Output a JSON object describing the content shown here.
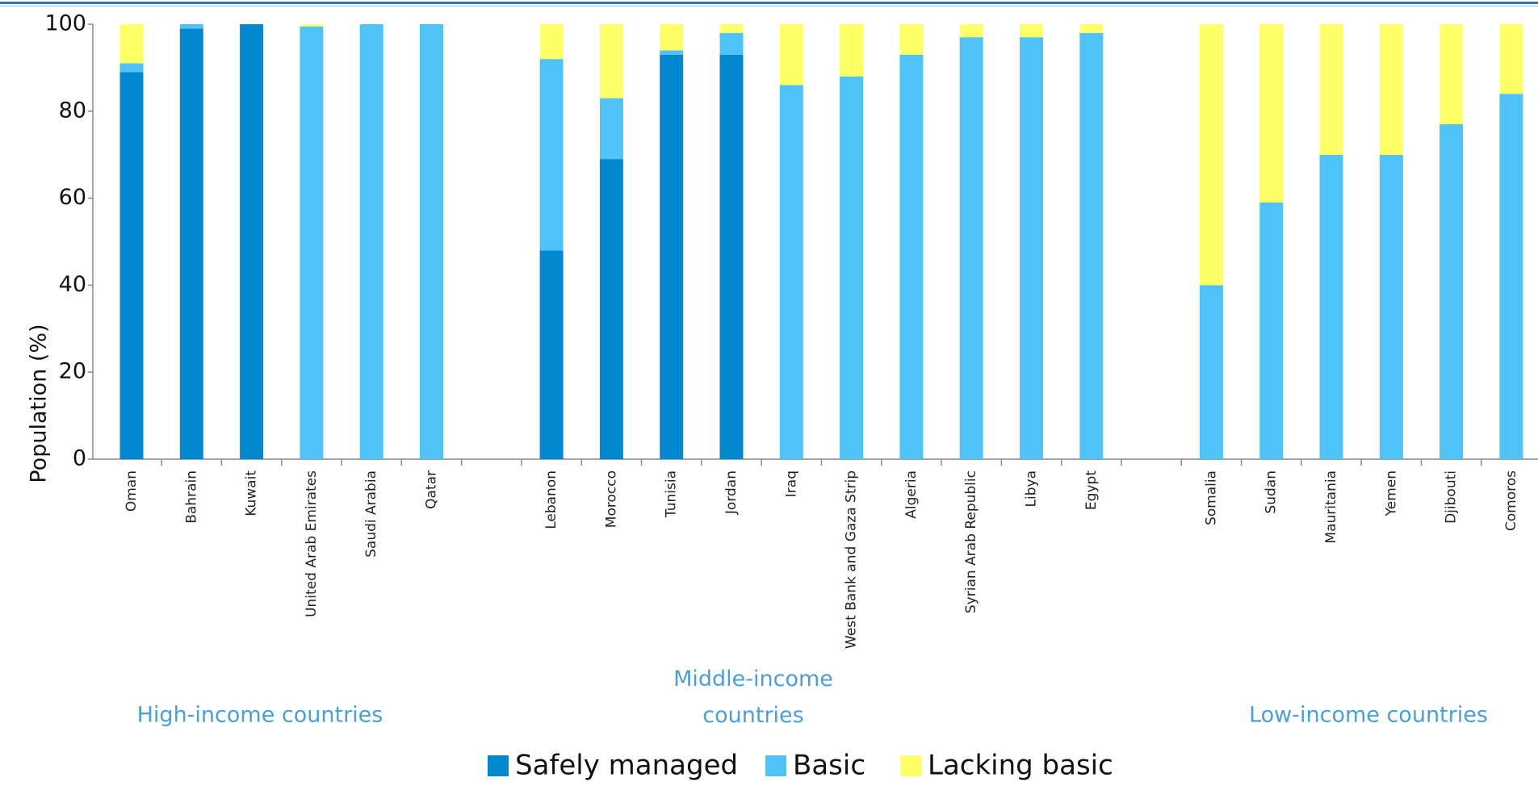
{
  "chart_data": {
    "type": "stacked_bar",
    "y_label": "Population (%)",
    "categories": [
      "Oman",
      "Bahrain",
      "Kuwait",
      "United Arab Emirates",
      "Saudi Arabia",
      "Qatar",
      null,
      "Lebanon",
      "Morocco",
      "Tunisia",
      "Jordan",
      "Iraq",
      "West Bank and Gaza Strip",
      "Algeria",
      "Syrian Arab Republic",
      "Libya",
      "Egypt",
      null,
      "Somalia",
      "Sudan",
      "Mauritania",
      "Yemen",
      "Djibouti",
      "Comoros"
    ],
    "series": [
      {
        "name": "Safely managed",
        "color": "#0288d1",
        "values": [
          89,
          99,
          100,
          0,
          0,
          0,
          null,
          48,
          69,
          93,
          93,
          0,
          0,
          0,
          0,
          0,
          0,
          null,
          0,
          0,
          0,
          0,
          0,
          0
        ]
      },
      {
        "name": "Basic",
        "color": "#4fc3f7",
        "values": [
          2,
          1,
          0,
          99.5,
          100,
          100,
          null,
          44,
          14,
          1,
          5,
          86,
          88,
          93,
          97,
          97,
          98,
          null,
          40,
          59,
          70,
          70,
          77,
          84
        ]
      },
      {
        "name": "Lacking basic",
        "color": "#ffff66",
        "values": [
          9,
          0,
          0,
          0.5,
          0,
          0,
          null,
          8,
          17,
          6,
          2,
          14,
          12,
          7,
          3,
          3,
          2,
          null,
          60,
          41,
          30,
          30,
          23,
          16
        ]
      }
    ],
    "group_labels": [
      "High-income countries",
      "Middle-income countries",
      "Low-income countries"
    ],
    "ylim": [
      0,
      100
    ],
    "yticks": [
      0,
      20,
      40,
      60,
      80,
      100
    ],
    "grid": false
  }
}
